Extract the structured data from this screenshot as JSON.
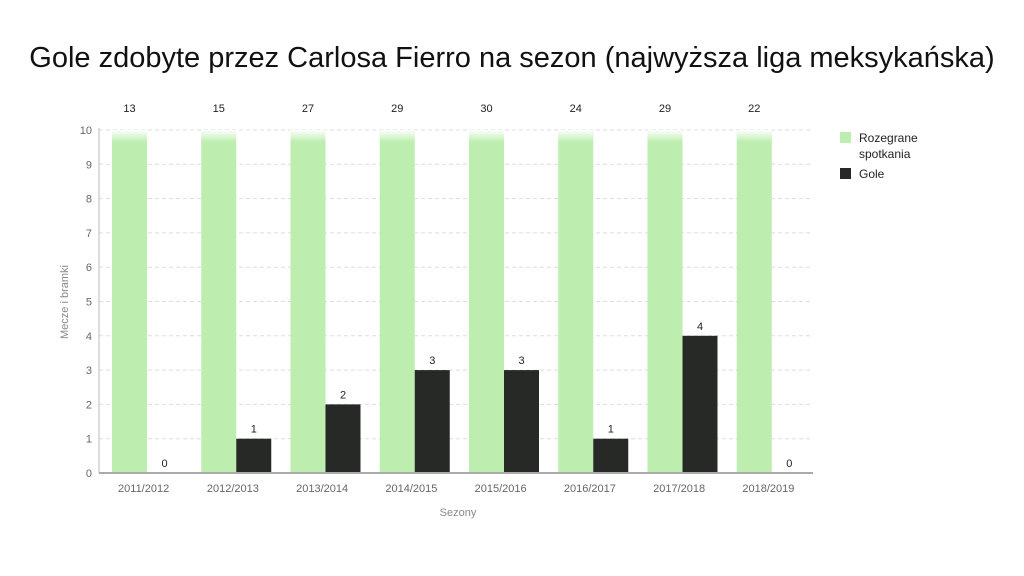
{
  "chart_data": {
    "type": "bar",
    "title": "Gole zdobyte przez Carlosa Fierro na sezon (najwyższa liga meksykańska)",
    "xlabel": "Sezony",
    "ylabel": "Mecze i bramki",
    "categories": [
      "2011/2012",
      "2012/2013",
      "2013/2014",
      "2014/2015",
      "2015/2016",
      "2016/2017",
      "2017/2018",
      "2018/2019"
    ],
    "series": [
      {
        "name": "Rozegrane spotkania",
        "values": [
          13,
          15,
          27,
          29,
          30,
          24,
          29,
          22
        ],
        "color": "#bdeeb0"
      },
      {
        "name": "Gole",
        "values": [
          0,
          1,
          2,
          3,
          3,
          1,
          4,
          0
        ],
        "color": "#262925"
      }
    ],
    "ylim": [
      0,
      10
    ],
    "yticks": [
      0,
      1,
      2,
      3,
      4,
      5,
      6,
      7,
      8,
      9,
      10
    ],
    "grid": true,
    "legend_position": "right"
  }
}
